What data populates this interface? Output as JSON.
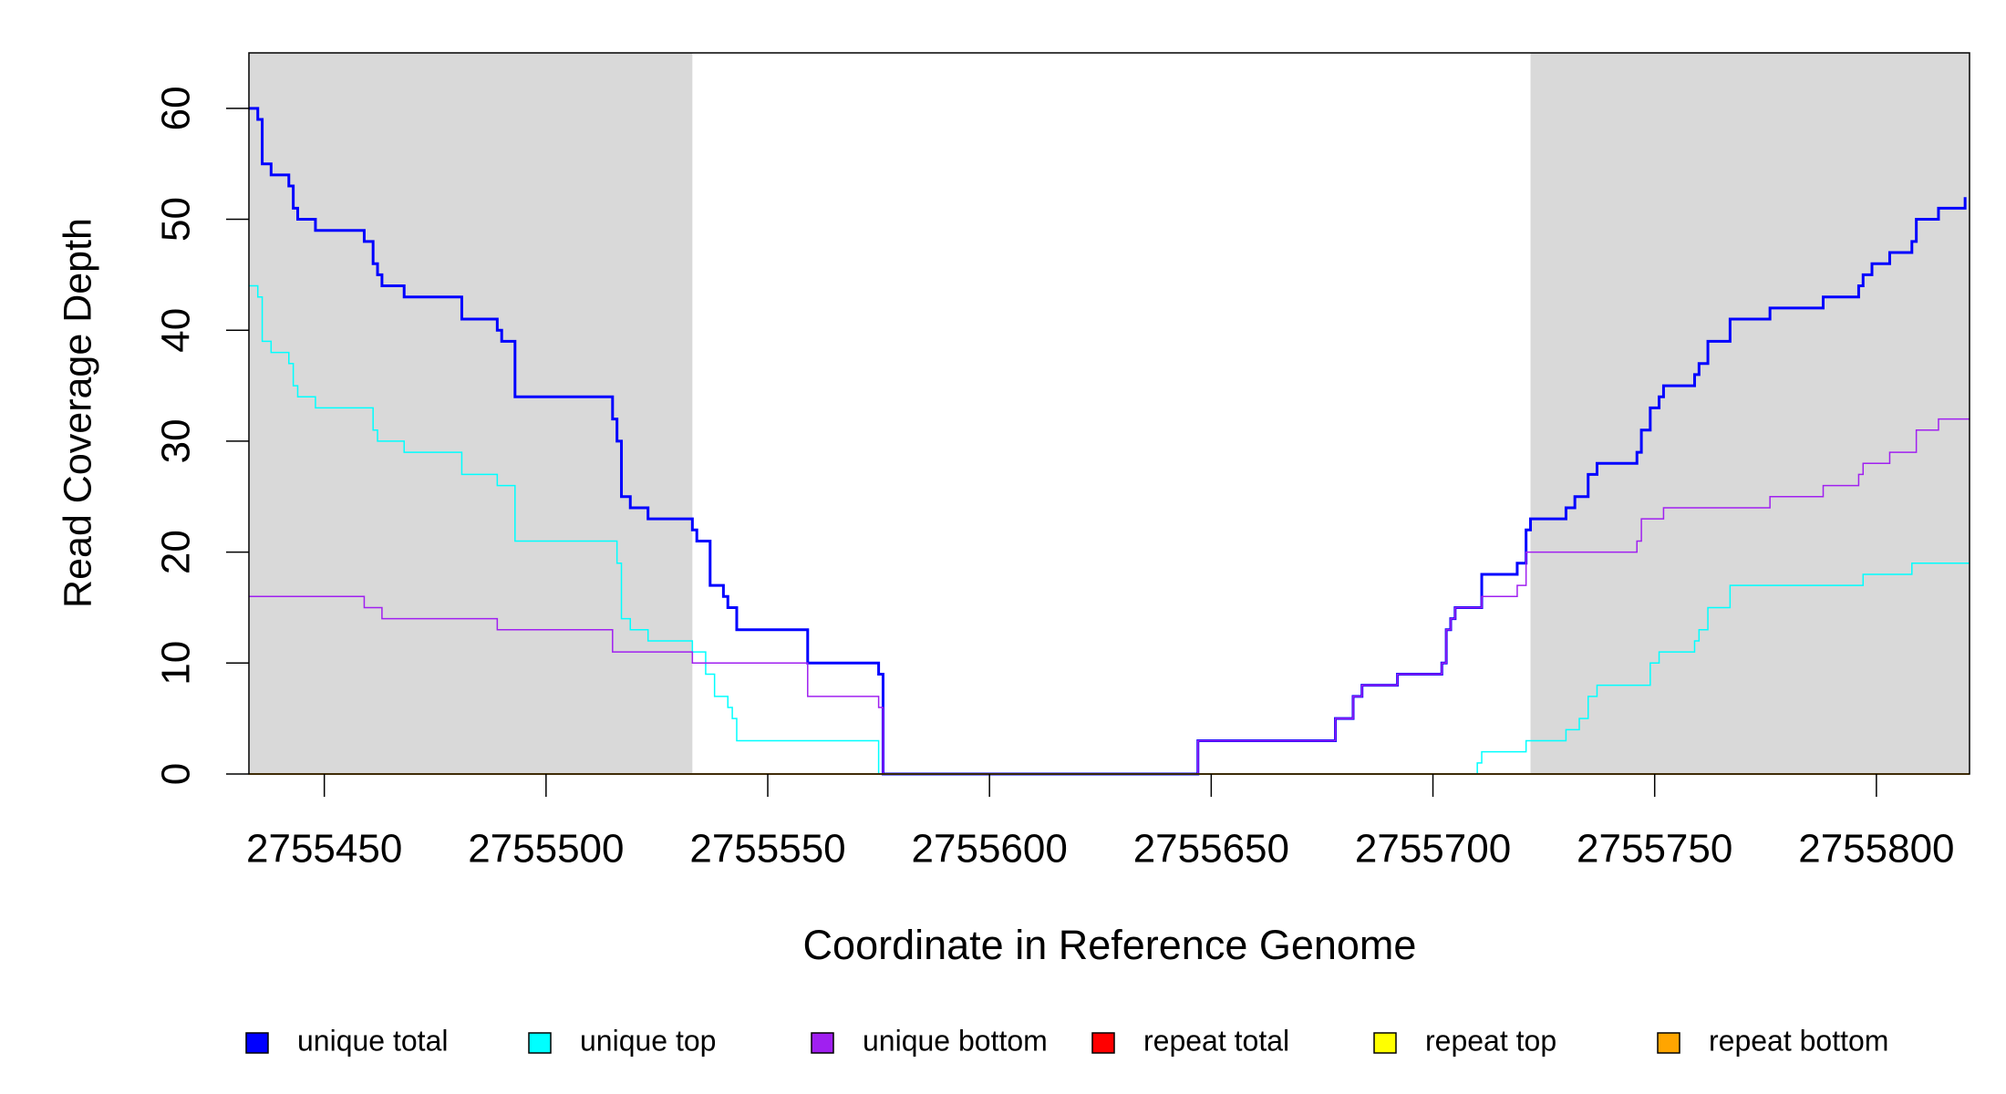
{
  "chart_data": {
    "type": "line",
    "step": "post",
    "xlabel": "Coordinate in Reference Genome",
    "ylabel": "Read Coverage Depth",
    "xlim": [
      2755433,
      2755821
    ],
    "ylim": [
      0,
      65
    ],
    "xticks": [
      2755450,
      2755500,
      2755550,
      2755600,
      2755650,
      2755700,
      2755750,
      2755800
    ],
    "yticks": [
      0,
      10,
      20,
      30,
      40,
      50,
      60
    ],
    "shaded_regions": [
      [
        2755433,
        2755533
      ],
      [
        2755722,
        2755821
      ]
    ],
    "shade_color": "#d9d9d9",
    "series": [
      {
        "name": "unique total",
        "color": "#0000ff",
        "width": 3,
        "x": [
          2755433,
          2755435,
          2755436,
          2755438,
          2755442,
          2755443,
          2755444,
          2755448,
          2755459,
          2755461,
          2755462,
          2755463,
          2755468,
          2755481,
          2755489,
          2755490,
          2755493,
          2755515,
          2755516,
          2755517,
          2755519,
          2755523,
          2755533,
          2755534,
          2755537,
          2755540,
          2755541,
          2755543,
          2755559,
          2755575,
          2755576,
          2755647,
          2755678,
          2755682,
          2755684,
          2755692,
          2755702,
          2755703,
          2755704,
          2755705,
          2755711,
          2755719,
          2755721,
          2755722,
          2755730,
          2755732,
          2755735,
          2755737,
          2755746,
          2755747,
          2755749,
          2755751,
          2755752,
          2755759,
          2755760,
          2755762,
          2755767,
          2755776,
          2755788,
          2755796,
          2755797,
          2755799,
          2755803,
          2755808,
          2755809,
          2755814,
          2755820
        ],
        "values": [
          60,
          59,
          55,
          54,
          53,
          51,
          50,
          49,
          48,
          46,
          45,
          44,
          43,
          41,
          40,
          39,
          34,
          32,
          30,
          25,
          24,
          23,
          22,
          21,
          17,
          16,
          15,
          13,
          10,
          9,
          0,
          3,
          5,
          7,
          8,
          9,
          10,
          13,
          14,
          15,
          18,
          19,
          22,
          23,
          24,
          25,
          27,
          28,
          29,
          31,
          33,
          34,
          35,
          36,
          37,
          39,
          41,
          42,
          43,
          44,
          45,
          46,
          47,
          48,
          50,
          51,
          52
        ]
      },
      {
        "name": "unique top",
        "color": "#00ffff",
        "width": 1.5,
        "x": [
          2755433,
          2755435,
          2755436,
          2755438,
          2755442,
          2755443,
          2755444,
          2755448,
          2755461,
          2755462,
          2755468,
          2755481,
          2755489,
          2755493,
          2755516,
          2755517,
          2755519,
          2755523,
          2755533,
          2755536,
          2755538,
          2755541,
          2755542,
          2755543,
          2755575,
          2755710,
          2755711,
          2755721,
          2755730,
          2755733,
          2755735,
          2755737,
          2755749,
          2755751,
          2755759,
          2755760,
          2755762,
          2755767,
          2755797,
          2755808,
          2755821
        ],
        "values": [
          44,
          43,
          39,
          38,
          37,
          35,
          34,
          33,
          31,
          30,
          29,
          27,
          26,
          21,
          19,
          14,
          13,
          12,
          11,
          9,
          7,
          6,
          5,
          3,
          0,
          1,
          2,
          3,
          4,
          5,
          7,
          8,
          10,
          11,
          12,
          13,
          15,
          17,
          18,
          19,
          19
        ]
      },
      {
        "name": "unique bottom",
        "color": "#a020f0",
        "width": 1.5,
        "x": [
          2755433,
          2755459,
          2755463,
          2755489,
          2755515,
          2755533,
          2755559,
          2755575,
          2755576,
          2755647,
          2755678,
          2755682,
          2755684,
          2755692,
          2755702,
          2755703,
          2755704,
          2755705,
          2755711,
          2755719,
          2755721,
          2755746,
          2755747,
          2755752,
          2755776,
          2755788,
          2755796,
          2755797,
          2755803,
          2755809,
          2755814,
          2755821
        ],
        "values": [
          16,
          15,
          14,
          13,
          11,
          10,
          7,
          6,
          0,
          3,
          5,
          7,
          8,
          9,
          10,
          13,
          14,
          15,
          16,
          17,
          20,
          21,
          23,
          24,
          25,
          26,
          27,
          28,
          29,
          31,
          32,
          32
        ]
      },
      {
        "name": "repeat total",
        "color": "#ff0000",
        "width": 1.5,
        "x": [
          2755433,
          2755821
        ],
        "values": [
          0,
          0
        ]
      },
      {
        "name": "repeat top",
        "color": "#ffff00",
        "width": 1.5,
        "x": [
          2755433,
          2755821
        ],
        "values": [
          0,
          0
        ]
      },
      {
        "name": "repeat bottom",
        "color": "#ffa500",
        "width": 1.5,
        "x": [
          2755433,
          2755821
        ],
        "values": [
          0,
          0
        ]
      }
    ]
  }
}
